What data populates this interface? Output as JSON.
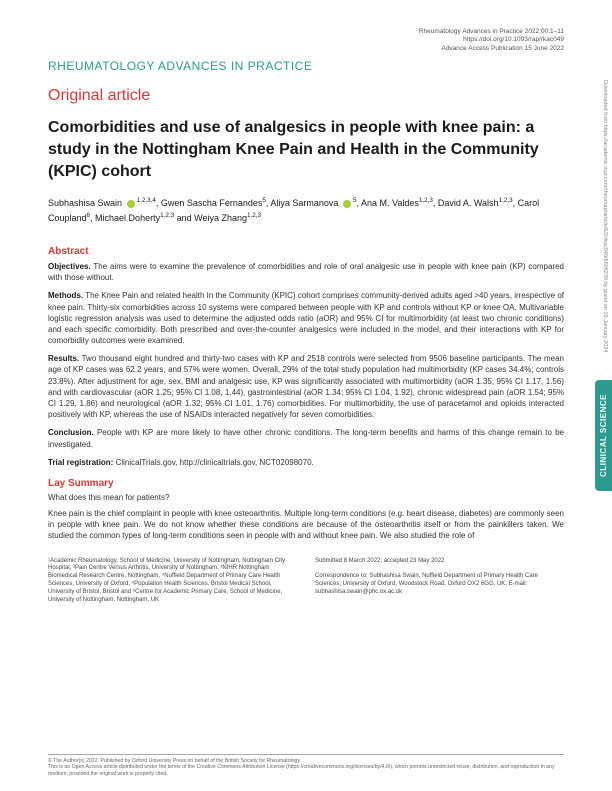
{
  "meta": {
    "citation": "Rheumatology Advances in Practice 2022;00:1–11",
    "doi": "https://doi.org/10.1093/rap/rkac049",
    "pubdate": "Advance Access Publication 15 June 2022"
  },
  "journal": "RHEUMATOLOGY ADVANCES IN PRACTICE",
  "article_type": "Original article",
  "title": "Comorbidities and use of analgesics in people with knee pain: a study in the Nottingham Knee Pain and Health in the Community (KPIC) cohort",
  "authors_html": "Subhashisa Swain <span class='orcid'></span><sup>1,2,3,4</sup>, Gwen Sascha Fernandes<sup>5</sup>, Aliya Sarmanova <span class='orcid'></span><sup>5</sup>, Ana M. Valdes<sup>1,2,3</sup>, David A. Walsh<sup>1,2,3</sup>, Carol Coupland<sup>6</sup>, Michael Doherty<sup>1,2,3</sup> and Weiya Zhang<sup>1,2,3</sup>",
  "abstract": {
    "heading": "Abstract",
    "objectives_label": "Objectives.",
    "objectives": " The aims were to examine the prevalence of comorbidities and role of oral analgesic use in people with knee pain (KP) compared with those without.",
    "methods_label": "Methods.",
    "methods": " The Knee Pain and related health In the Community (KPIC) cohort comprises community-derived adults aged >40 years, irrespective of knee pain. Thirty-six comorbidities across 10 systems were compared between people with KP and controls without KP or knee OA. Multivariable logistic regression analysis was used to determine the adjusted odds ratio (aOR) and 95% CI for multimorbidity (at least two chronic conditions) and each specific comorbidity. Both prescribed and over-the-counter analgesics were included in the model, and their interactions with KP for comorbidity outcomes were examined.",
    "results_label": "Results.",
    "results": " Two thousand eight hundred and thirty-two cases with KP and 2518 controls were selected from 9506 baseline participants. The mean age of KP cases was 62.2 years, and 57% were women. Overall, 29% of the total study population had multimorbidity (KP cases 34.4%; controls 23.8%). After adjustment for age, sex, BMI and analgesic use, KP was significantly associated with multimorbidity (aOR 1.35; 95% CI 1.17, 1.56) and with cardiovascular (aOR 1.25; 95% CI 1.08, 1.44), gastrointestinal (aOR 1.34; 95% CI 1.04, 1.92), chronic widespread pain (aOR 1.54; 95% CI 1.29, 1.86) and neurological (aOR 1.32; 95% CI 1.01, 1.76) comorbidities. For multimorbidity, the use of paracetamol and opioids interacted positively with KP, whereas the use of NSAIDs interacted negatively for seven comorbidities.",
    "conclusion_label": "Conclusion.",
    "conclusion": " People with KP are more likely to have other chronic conditions. The long-term benefits and harms of this change remain to be investigated.",
    "trial_label": "Trial registration:",
    "trial": " ClinicalTrials.gov, http://clinicaltrials.gov, NCT02098070."
  },
  "lay": {
    "heading": "Lay Summary",
    "sub": "What does this mean for patients?",
    "text": "Knee pain is the chief complaint in people with knee osteoarthritis. Multiple long-term conditions (e.g. heart disease, diabetes) are commonly seen in people with knee pain. We do not know whether these conditions are because of the osteoarthritis itself or from the painkillers taken. We studied the common types of long-term conditions seen in people with and without knee pain. We also studied the role of"
  },
  "affiliations": {
    "left": "¹Academic Rheumatology, School of Medicine, University of Nottingham, Nottingham City Hospital, ²Pain Centre Versus Arthritis, University of Nottingham, ³NIHR Nottingham Biomedical Research Centre, Nottingham, ⁴Nuffield Department of Primary Care Health Sciences, University of Oxford, ⁵Population Health Sciences, Bristol Medical School, University of Bristol, Bristol and ⁶Centre for Academic Primary Care, School of Medicine, University of Nottingham, Nottingham, UK",
    "right": "Submitted 8 March 2022; accepted 23 May 2022\n\nCorrespondence to: Subhashisa Swain, Nuffield Department of Primary Health Care Sciences, University of Oxford, Woodstock Road, Oxford OX2 6GG, UK. E-mail: subhashisa.swain@phc.ox.ac.uk"
  },
  "footer": "© The Author(s) 2022. Published by Oxford University Press on behalf of the British Society for Rheumatology.\nThis is an Open Access article distributed under the terms of the Creative Commons Attribution License (https://creativecommons.org/licenses/by/4.0/), which permits unrestricted reuse, distribution, and reproduction in any medium, provided the original work is properly cited.",
  "side_tab": "CLINICAL SCIENCE",
  "download_note": "Downloaded from https://academic.oup.com/rheumap/article/6/2/rkac049/6608239 by guest on 10 January 2024",
  "colors": {
    "teal": "#2a9b8e",
    "red": "#d93838",
    "orcid_green": "#a6ce39",
    "text": "#1a1a1a",
    "body": "#333333"
  }
}
